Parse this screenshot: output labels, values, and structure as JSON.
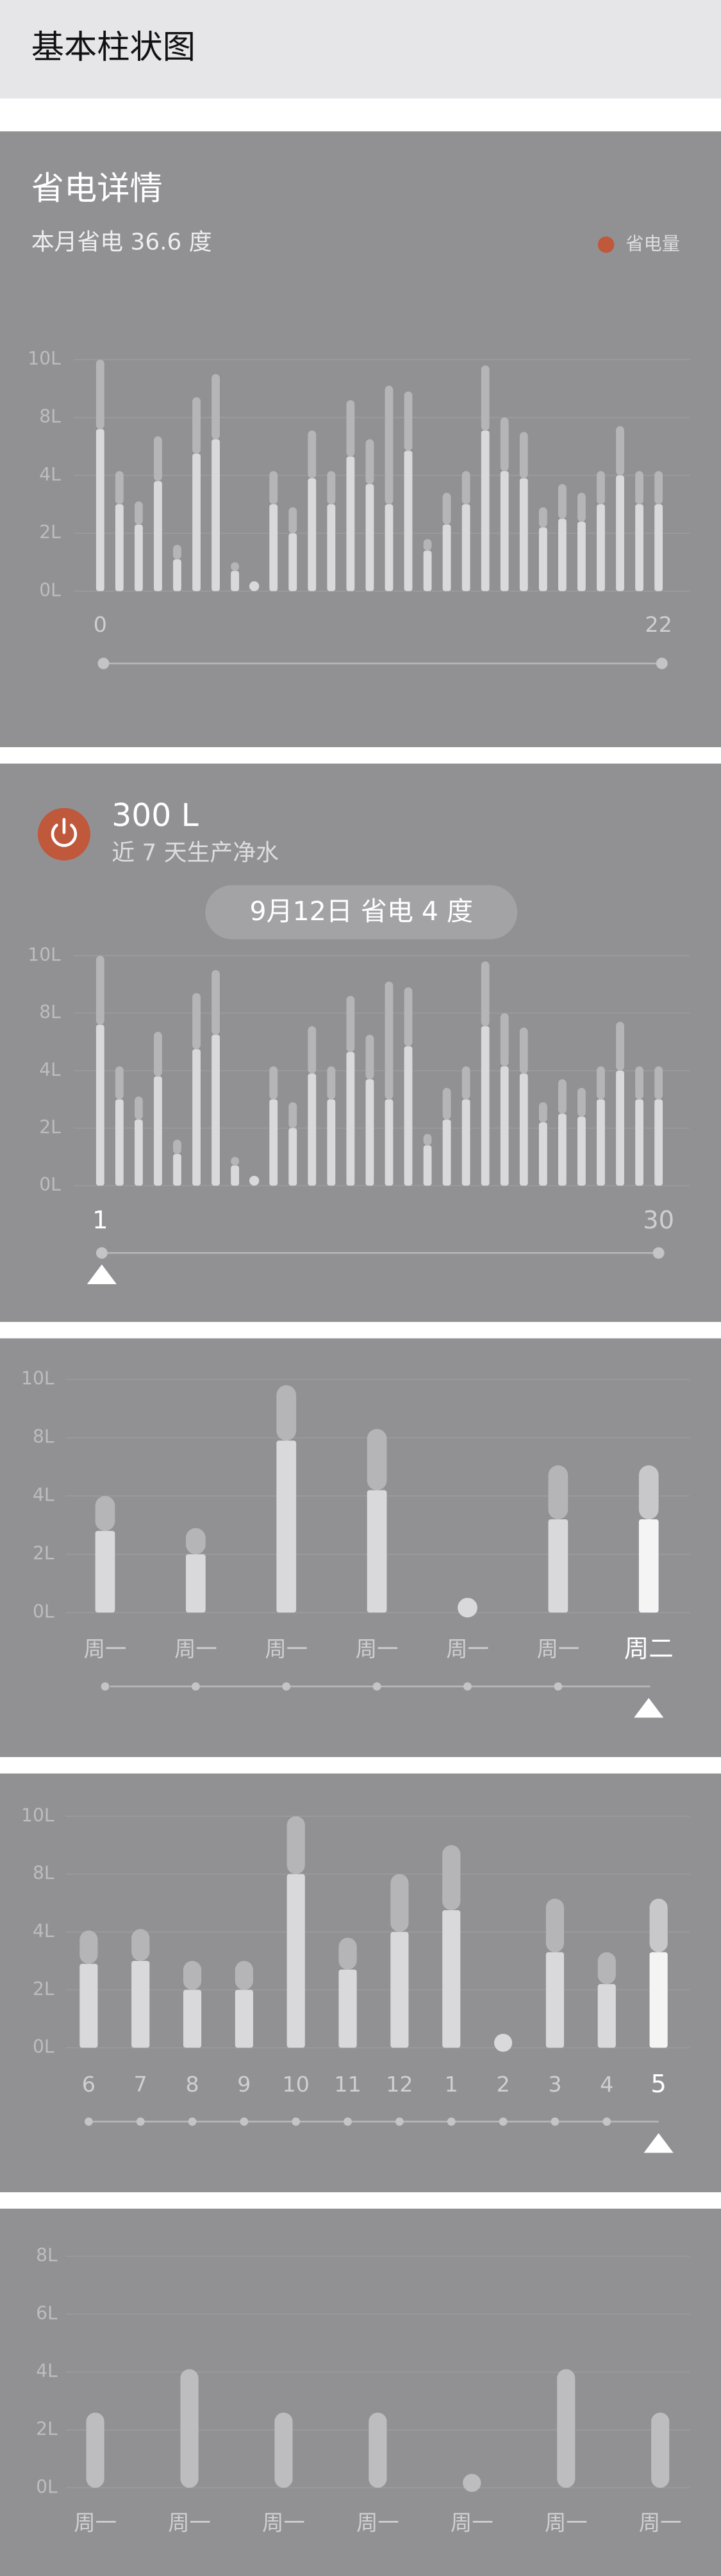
{
  "header": {
    "title": "基本柱状图"
  },
  "chart_data": [
    {
      "type": "bar",
      "title": "省电详情",
      "subtitle": "本月省电 36.6 度",
      "legend": {
        "label": "省电量",
        "color": "#c0583b"
      },
      "categories": [
        "0",
        null,
        null,
        null,
        null,
        null,
        null,
        null,
        null,
        null,
        null,
        null,
        null,
        null,
        null,
        null,
        null,
        null,
        null,
        null,
        null,
        null,
        null,
        null,
        null,
        null,
        null,
        null,
        null,
        "22"
      ],
      "series": [
        {
          "color": "#d9d9db",
          "values": [
            7.2,
            3.0,
            2.3,
            3.8,
            1.1,
            5.5,
            6.5,
            0.7,
            0,
            3.0,
            2.0,
            3.9,
            3.0,
            5.3,
            3.7,
            3.0,
            5.7,
            1.4,
            2.3,
            3.0,
            7.1,
            4.3,
            3.9,
            2.2,
            2.5,
            2.4,
            3.0,
            4.0,
            3.0,
            3.0
          ]
        },
        {
          "color": "#b5b5b8",
          "values": [
            2.8,
            1.3,
            0.8,
            2.9,
            0.5,
            3.2,
            3.0,
            0.3,
            0,
            1.3,
            0.9,
            3.2,
            1.3,
            3.3,
            2.8,
            6.1,
            3.2,
            0.4,
            1.1,
            1.3,
            2.7,
            3.7,
            3.1,
            0.7,
            1.2,
            1.0,
            1.3,
            3.4,
            1.3,
            1.3
          ]
        }
      ],
      "ylim": [
        0,
        10
      ],
      "yticks": [
        {
          "value": 0,
          "label": "0L"
        },
        {
          "value": 2,
          "label": "2L"
        },
        {
          "value": 4,
          "label": "4L"
        },
        {
          "value": 8,
          "label": "8L"
        },
        {
          "value": 10,
          "label": "10L"
        }
      ],
      "grid": true
    },
    {
      "type": "bar",
      "headline": "300 L",
      "subtitle": "近 7 天生产净水",
      "tooltip": "9月12日 省电 4 度",
      "categories": [
        "1",
        null,
        null,
        null,
        null,
        null,
        null,
        null,
        null,
        null,
        null,
        null,
        null,
        null,
        null,
        null,
        null,
        null,
        null,
        null,
        null,
        null,
        null,
        null,
        null,
        null,
        null,
        null,
        null,
        "30"
      ],
      "series": [
        {
          "color": "#d9d9db",
          "values": [
            7.2,
            3.0,
            2.3,
            3.8,
            1.1,
            5.5,
            6.5,
            0.7,
            0,
            3.0,
            2.0,
            3.9,
            3.0,
            5.3,
            3.7,
            3.0,
            5.7,
            1.4,
            2.3,
            3.0,
            7.1,
            4.3,
            3.9,
            2.2,
            2.5,
            2.4,
            3.0,
            4.0,
            3.0,
            3.0
          ]
        },
        {
          "color": "#b5b5b8",
          "values": [
            2.8,
            1.3,
            0.8,
            2.9,
            0.5,
            3.2,
            3.0,
            0.3,
            0,
            1.3,
            0.9,
            3.2,
            1.3,
            3.3,
            2.8,
            6.1,
            3.2,
            0.4,
            1.1,
            1.3,
            2.7,
            3.7,
            3.1,
            0.7,
            1.2,
            1.0,
            1.3,
            3.4,
            1.3,
            1.3
          ]
        }
      ],
      "ylim": [
        0,
        10
      ],
      "yticks": [
        {
          "value": 0,
          "label": "0L"
        },
        {
          "value": 2,
          "label": "2L"
        },
        {
          "value": 4,
          "label": "4L"
        },
        {
          "value": 8,
          "label": "8L"
        },
        {
          "value": 10,
          "label": "10L"
        }
      ],
      "grid": true,
      "selected": 0
    },
    {
      "type": "bar",
      "categories": [
        "周一",
        "周一",
        "周一",
        "周一",
        "周一",
        "周一",
        "周二"
      ],
      "series": [
        {
          "color": "#d9d9db",
          "values": [
            2.8,
            2.0,
            7.8,
            4.4,
            0,
            3.2,
            3.2
          ]
        },
        {
          "color": "#b5b5b8",
          "values": [
            1.2,
            0.9,
            2.0,
            3.9,
            0,
            2.9,
            2.9
          ]
        }
      ],
      "ylim": [
        0,
        10
      ],
      "yticks": [
        {
          "value": 0,
          "label": "0L"
        },
        {
          "value": 2,
          "label": "2L"
        },
        {
          "value": 4,
          "label": "4L"
        },
        {
          "value": 8,
          "label": "8L"
        },
        {
          "value": 10,
          "label": "10L"
        }
      ],
      "grid": true,
      "selected": 6,
      "selected_colors": [
        "#f4f4f4",
        "#c8c8ca"
      ]
    },
    {
      "type": "bar",
      "categories": [
        "6",
        "7",
        "8",
        "9",
        "10",
        "11",
        "12",
        "1",
        "2",
        "3",
        "4",
        "5"
      ],
      "series": [
        {
          "color": "#d9d9db",
          "values": [
            2.9,
            3.0,
            2.0,
            2.0,
            8.0,
            2.7,
            4.0,
            5.5,
            0,
            3.3,
            2.2,
            3.3
          ]
        },
        {
          "color": "#b5b5b8",
          "values": [
            1.2,
            1.2,
            1.0,
            1.0,
            2.0,
            1.1,
            4.0,
            3.5,
            0,
            3.0,
            1.1,
            3.0
          ]
        }
      ],
      "ylim": [
        0,
        10
      ],
      "yticks": [
        {
          "value": 0,
          "label": "0L"
        },
        {
          "value": 2,
          "label": "2L"
        },
        {
          "value": 4,
          "label": "4L"
        },
        {
          "value": 8,
          "label": "8L"
        },
        {
          "value": 10,
          "label": "10L"
        }
      ],
      "grid": true,
      "selected": 11,
      "selected_colors": [
        "#f4f4f4",
        "#c8c8ca"
      ]
    },
    {
      "type": "bar",
      "categories": [
        "周一",
        "周一",
        "周一",
        "周一",
        "周一",
        "周一",
        "周一"
      ],
      "series": [
        {
          "color": "#bdbdc0",
          "values": [
            2.6,
            4.1,
            2.6,
            2.6,
            0,
            4.1,
            2.6
          ]
        }
      ],
      "ylim": [
        0,
        8
      ],
      "yticks": [
        {
          "value": 0,
          "label": "0L"
        },
        {
          "value": 2,
          "label": "2L"
        },
        {
          "value": 4,
          "label": "4L"
        },
        {
          "value": 6,
          "label": "6L"
        },
        {
          "value": 8,
          "label": "8L"
        }
      ],
      "grid": true
    }
  ]
}
